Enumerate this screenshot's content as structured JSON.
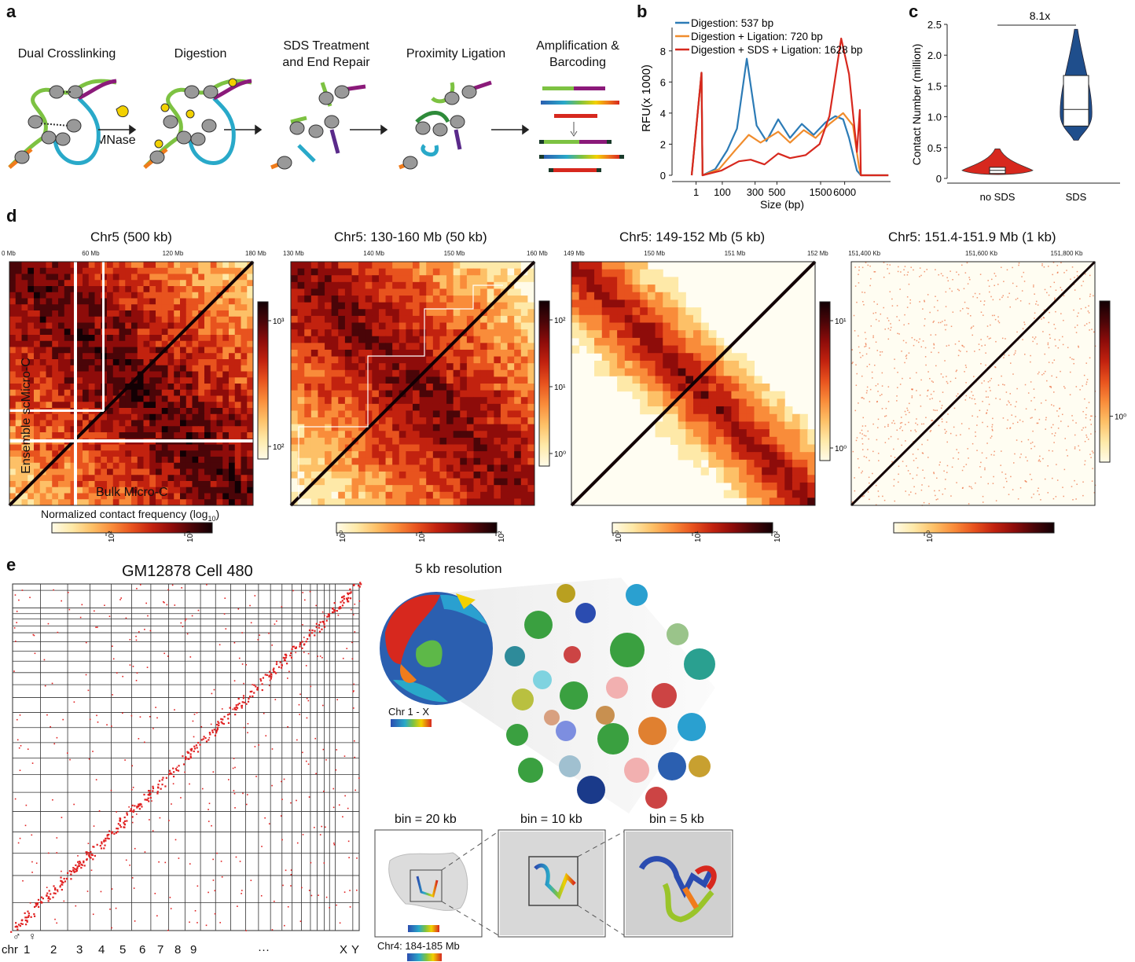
{
  "panels": {
    "a": "a",
    "b": "b",
    "c": "c",
    "d": "d",
    "e": "e"
  },
  "panel_a": {
    "steps": [
      "Dual Crosslinking",
      "Digestion",
      "SDS Treatment\nand End Repair",
      "Proximity Ligation",
      "Amplification &\nBarcoding"
    ],
    "enzyme_label": "MNase"
  },
  "chart_data": [
    {
      "type": "line",
      "panel": "b",
      "xlabel": "Size (bp)",
      "ylabel": "RFU(x 1000)",
      "ylim": [
        0,
        9
      ],
      "x_ticks": [
        "1",
        "100",
        "300",
        "500",
        "1500",
        "6000"
      ],
      "y_ticks": [
        0,
        2,
        4,
        6,
        8
      ],
      "series": [
        {
          "name": "Digestion: 537 bp",
          "color": "#2c7bb6",
          "points": [
            [
              0,
              0
            ],
            [
              0.05,
              6.6
            ],
            [
              0.055,
              0
            ],
            [
              0.12,
              0.4
            ],
            [
              0.18,
              1.6
            ],
            [
              0.23,
              3
            ],
            [
              0.28,
              7.5
            ],
            [
              0.33,
              3.2
            ],
            [
              0.38,
              2.2
            ],
            [
              0.44,
              3.6
            ],
            [
              0.5,
              2.4
            ],
            [
              0.56,
              3.3
            ],
            [
              0.62,
              2.6
            ],
            [
              0.68,
              3.4
            ],
            [
              0.73,
              3.8
            ],
            [
              0.77,
              3.6
            ],
            [
              0.8,
              2.4
            ],
            [
              0.84,
              0.3
            ],
            [
              0.86,
              0
            ],
            [
              1,
              0
            ]
          ]
        },
        {
          "name": "Digestion + Ligation: 720 bp",
          "color": "#f08c2c",
          "points": [
            [
              0,
              0
            ],
            [
              0.05,
              6.6
            ],
            [
              0.055,
              0
            ],
            [
              0.14,
              0.4
            ],
            [
              0.22,
              1.6
            ],
            [
              0.29,
              2.6
            ],
            [
              0.35,
              2.1
            ],
            [
              0.44,
              2.8
            ],
            [
              0.5,
              2.1
            ],
            [
              0.57,
              2.9
            ],
            [
              0.63,
              2.4
            ],
            [
              0.7,
              3.3
            ],
            [
              0.77,
              4
            ],
            [
              0.82,
              3.2
            ],
            [
              0.85,
              0.6
            ],
            [
              0.86,
              0
            ],
            [
              1,
              0
            ]
          ]
        },
        {
          "name": "Digestion + SDS + Ligation: 1628 bp",
          "color": "#d7281e",
          "points": [
            [
              0,
              0
            ],
            [
              0.05,
              6.6
            ],
            [
              0.055,
              0
            ],
            [
              0.15,
              0.3
            ],
            [
              0.24,
              0.9
            ],
            [
              0.3,
              1
            ],
            [
              0.37,
              0.7
            ],
            [
              0.44,
              1.4
            ],
            [
              0.5,
              1.1
            ],
            [
              0.58,
              1.3
            ],
            [
              0.65,
              2
            ],
            [
              0.7,
              3.8
            ],
            [
              0.76,
              8.8
            ],
            [
              0.8,
              6.5
            ],
            [
              0.84,
              1.5
            ],
            [
              0.855,
              4.2
            ],
            [
              0.86,
              0
            ],
            [
              1,
              0
            ]
          ]
        }
      ]
    },
    {
      "type": "violin",
      "panel": "c",
      "ylabel": "Contact Number (million)",
      "ylim": [
        0,
        2.5
      ],
      "y_ticks": [
        "0",
        "0.5",
        "1.0",
        "1.5",
        "2.0",
        "2.5"
      ],
      "categories": [
        "no SDS",
        "SDS"
      ],
      "annotation": "8.1x",
      "box": [
        {
          "category": "no SDS",
          "q1": 0.08,
          "median": 0.13,
          "q3": 0.18,
          "min": 0.03,
          "max": 0.48,
          "color": "#d7281e"
        },
        {
          "category": "SDS",
          "q1": 0.85,
          "median": 1.12,
          "q3": 1.67,
          "min": 0.62,
          "max": 2.42,
          "color": "#1f4e8c"
        }
      ]
    }
  ],
  "panel_d": {
    "maps": [
      {
        "title": "Chr5 (500 kb)",
        "ticks": [
          "0 Mb",
          "60 Mb",
          "120 Mb",
          "180 Mb"
        ],
        "cbar_ticks": [
          "10³",
          "10²"
        ],
        "hcbar_ticks": [
          "10²",
          "10³"
        ]
      },
      {
        "title": "Chr5: 130-160 Mb (50 kb)",
        "ticks": [
          "130 Mb",
          "140 Mb",
          "150 Mb",
          "160 Mb"
        ],
        "cbar_ticks": [
          "10²",
          "10¹",
          "10⁰"
        ],
        "hcbar_ticks": [
          "10⁰",
          "10¹",
          "10²"
        ]
      },
      {
        "title": "Chr5: 149-152 Mb (5 kb)",
        "ticks": [
          "149 Mb",
          "150 Mb",
          "151 Mb",
          "152 Mb"
        ],
        "cbar_ticks": [
          "10¹",
          "10⁰"
        ],
        "hcbar_ticks": [
          "10⁰",
          "10¹",
          "10²"
        ]
      },
      {
        "title": "Chr5: 151.4-151.9 Mb (1 kb)",
        "ticks": [
          "151,400 Kb",
          "151,600 Kb",
          "151,800 Kb"
        ],
        "cbar_ticks": [
          "10⁰"
        ],
        "hcbar_ticks": [
          "10⁰"
        ]
      }
    ],
    "upper_label": "Ensemble scMicro-C",
    "lower_label": "Bulk Micro-C",
    "cbar_label": "Normalized contact frequency (log",
    "cbar_sub": "10",
    "cbar_close": ")"
  },
  "panel_e": {
    "title": "GM12878 Cell 480",
    "chr_label": "chr",
    "chr_ticks": [
      "1",
      "2",
      "3",
      "4",
      "5",
      "6",
      "7",
      "8",
      "9",
      "···",
      "X",
      "Y"
    ],
    "male": "♂",
    "female": "♀",
    "resolution": "5 kb resolution",
    "legend_chr": "Chr 1 - X",
    "bins": [
      "bin = 20 kb",
      "bin = 10 kb",
      "bin = 5 kb"
    ],
    "region": "Chr4: 184-185 Mb"
  }
}
